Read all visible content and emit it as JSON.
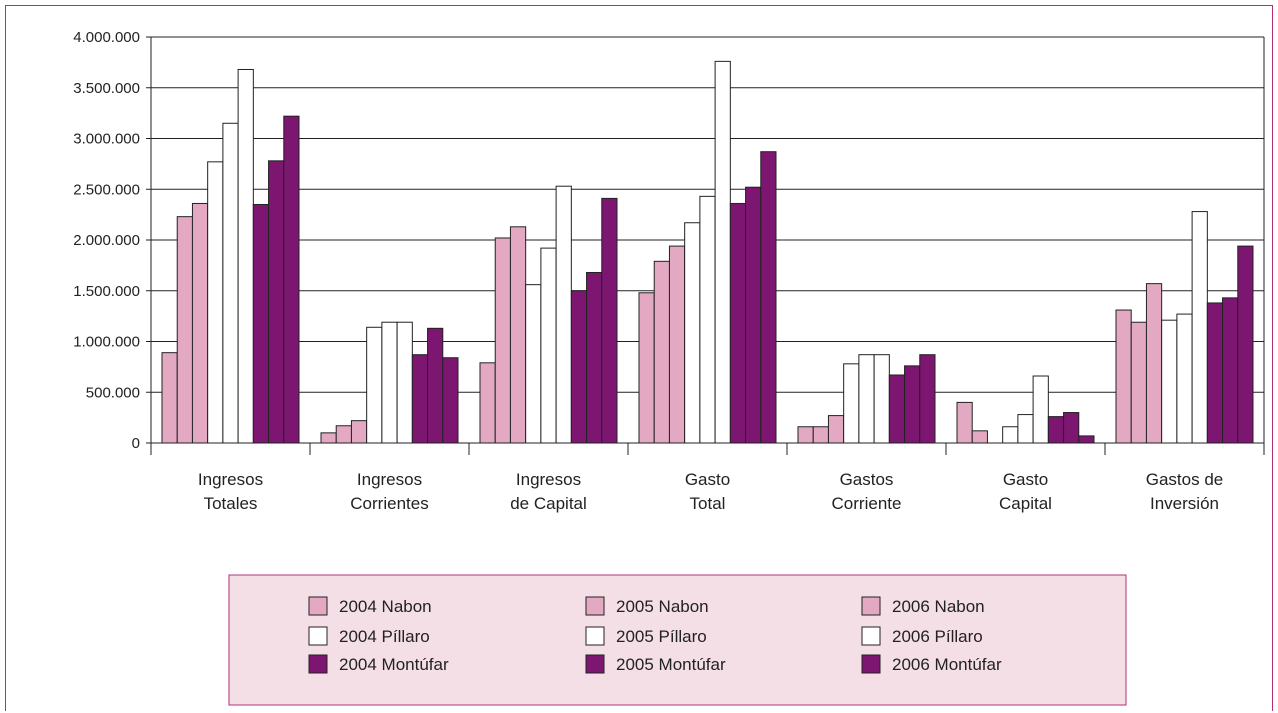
{
  "chart_data": {
    "type": "bar",
    "title": "",
    "xlabel": "",
    "ylabel": "",
    "ylim": [
      0,
      4000000
    ],
    "yticks": [
      0,
      500000,
      1000000,
      1500000,
      2000000,
      2500000,
      3000000,
      3500000,
      4000000
    ],
    "ytick_labels": [
      "0",
      "500.000",
      "1.000.000",
      "1.500.000",
      "2.000.000",
      "2.500.000",
      "3.000.000",
      "3.500.000",
      "4.000.000"
    ],
    "grid": true,
    "legend_position": "bottom",
    "categories": [
      [
        "Ingresos",
        "Totales"
      ],
      [
        "Ingresos",
        "Corrientes"
      ],
      [
        "Ingresos",
        "de Capital"
      ],
      [
        "Gasto",
        "Total"
      ],
      [
        "Gastos",
        "Corriente"
      ],
      [
        "Gasto",
        "Capital"
      ],
      [
        "Gastos de",
        "Inversión"
      ]
    ],
    "series": [
      {
        "name": "2004 Nabon",
        "color": "#e3a9c2",
        "values": [
          890000,
          100000,
          790000,
          1480000,
          160000,
          400000,
          1310000
        ]
      },
      {
        "name": "2005 Nabon",
        "color": "#e3a9c2",
        "values": [
          2230000,
          170000,
          2020000,
          1790000,
          160000,
          120000,
          1190000
        ]
      },
      {
        "name": "2006 Nabon",
        "color": "#e3a9c2",
        "values": [
          2360000,
          220000,
          2130000,
          1940000,
          270000,
          0,
          1570000
        ]
      },
      {
        "name": "2004 Píllaro",
        "color": "#ffffff",
        "values": [
          2770000,
          1140000,
          1560000,
          2170000,
          780000,
          160000,
          1210000
        ]
      },
      {
        "name": "2005 Píllaro",
        "color": "#ffffff",
        "values": [
          3150000,
          1190000,
          1920000,
          2430000,
          870000,
          280000,
          1270000
        ]
      },
      {
        "name": "2006 Píllaro",
        "color": "#ffffff",
        "values": [
          3680000,
          1190000,
          2530000,
          3760000,
          870000,
          660000,
          2280000
        ]
      },
      {
        "name": "2004 Montúfar",
        "color": "#7d1670",
        "values": [
          2350000,
          870000,
          1500000,
          2360000,
          670000,
          260000,
          1380000
        ]
      },
      {
        "name": "2005 Montúfar",
        "color": "#7d1670",
        "values": [
          2780000,
          1130000,
          1680000,
          2520000,
          760000,
          300000,
          1430000
        ]
      },
      {
        "name": "2006 Montúfar",
        "color": "#7d1670",
        "values": [
          3220000,
          840000,
          2410000,
          2870000,
          870000,
          70000,
          1940000
        ]
      }
    ]
  },
  "colors": {
    "frame_border": "#b0307a",
    "legend_background": "#f5dfe7",
    "gridline": "#222222"
  }
}
